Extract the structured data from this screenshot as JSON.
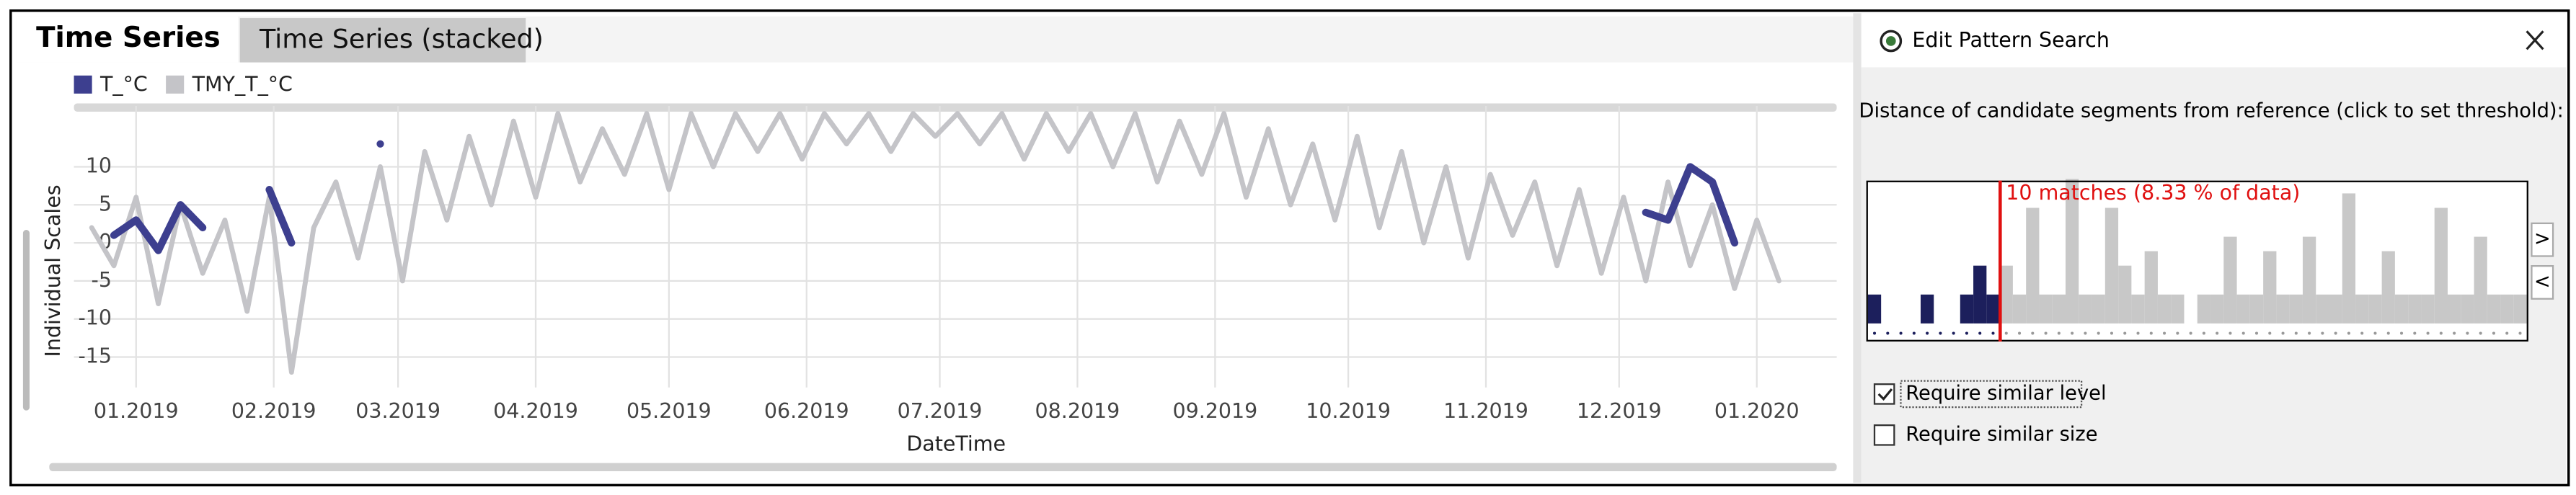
{
  "tabs": [
    "Time Series",
    "Time Series (stacked)"
  ],
  "chart_data": [
    {
      "type": "line",
      "ylabel": "Individual Scales",
      "xlabel": "DateTime",
      "x": [
        -10,
        -5,
        0,
        5,
        10,
        15,
        20,
        25,
        30,
        35,
        40,
        45,
        50,
        55,
        60,
        65,
        70,
        75,
        80,
        85,
        90,
        95,
        100,
        105,
        110,
        115,
        120,
        125,
        130,
        135,
        140,
        145,
        150,
        155,
        160,
        165,
        170,
        175,
        180,
        185,
        190,
        195,
        200,
        205,
        210,
        215,
        220,
        225,
        230,
        235,
        240,
        245,
        250,
        255,
        260,
        265,
        270,
        275,
        280,
        285,
        290,
        295,
        300,
        305,
        310,
        315,
        320,
        325,
        330,
        335,
        340,
        345,
        350,
        355,
        360,
        365,
        370
      ],
      "xlim": [
        -14,
        383
      ],
      "xticks": [
        {
          "value": 0,
          "label": "01.2019"
        },
        {
          "value": 31,
          "label": "02.2019"
        },
        {
          "value": 59,
          "label": "03.2019"
        },
        {
          "value": 90,
          "label": "04.2019"
        },
        {
          "value": 120,
          "label": "05.2019"
        },
        {
          "value": 151,
          "label": "06.2019"
        },
        {
          "value": 181,
          "label": "07.2019"
        },
        {
          "value": 212,
          "label": "08.2019"
        },
        {
          "value": 243,
          "label": "09.2019"
        },
        {
          "value": 273,
          "label": "10.2019"
        },
        {
          "value": 304,
          "label": "11.2019"
        },
        {
          "value": 334,
          "label": "12.2019"
        },
        {
          "value": 365,
          "label": "01.2020"
        }
      ],
      "ylim": [
        -19,
        18
      ],
      "yticks": [
        10,
        5,
        0,
        -5,
        -10,
        -15
      ],
      "grid": true,
      "series": [
        {
          "name": "T_°C",
          "color": "#3d3f8f",
          "values": [
            null,
            1,
            3,
            -1,
            5,
            2,
            null,
            null,
            7,
            0,
            null,
            null,
            null,
            13,
            null,
            null,
            null,
            null,
            null,
            null,
            null,
            null,
            null,
            null,
            null,
            null,
            null,
            null,
            null,
            null,
            null,
            null,
            null,
            null,
            null,
            null,
            null,
            null,
            null,
            null,
            null,
            null,
            null,
            null,
            null,
            null,
            null,
            null,
            null,
            null,
            null,
            null,
            null,
            null,
            null,
            null,
            null,
            null,
            null,
            null,
            null,
            null,
            null,
            null,
            null,
            null,
            null,
            null,
            null,
            null,
            4,
            3,
            10,
            8,
            0,
            null,
            null
          ]
        },
        {
          "name": "TMY_T_°C",
          "color": "#c4c4c8",
          "values": [
            2,
            -3,
            6,
            -8,
            5,
            -4,
            3,
            -9,
            6,
            -17,
            2,
            8,
            -2,
            10,
            -5,
            12,
            3,
            14,
            5,
            16,
            6,
            17,
            8,
            15,
            9,
            17,
            7,
            17,
            10,
            17,
            12,
            17,
            11,
            17,
            13,
            17,
            12,
            17,
            14,
            17,
            13,
            17,
            11,
            17,
            12,
            17,
            10,
            17,
            8,
            16,
            9,
            17,
            6,
            15,
            5,
            13,
            3,
            14,
            2,
            12,
            0,
            10,
            -2,
            9,
            1,
            8,
            -3,
            7,
            -4,
            6,
            -5,
            8,
            -3,
            5,
            -6,
            3,
            -5
          ]
        }
      ]
    },
    {
      "type": "bar",
      "title": "Edit Pattern Search",
      "subtitle": "Distance of candidate segments from reference (click to set threshold):",
      "annotation": "10 matches (8.33 % of data)",
      "values": [
        0.2,
        0,
        0,
        0,
        0.2,
        0,
        0,
        0.2,
        0.4,
        0.2,
        0.4,
        0.2,
        0.8,
        0.2,
        0.2,
        1.0,
        0.2,
        0.2,
        0.8,
        0.4,
        0.2,
        0.5,
        0.2,
        0.2,
        0,
        0.2,
        0.2,
        0.6,
        0.2,
        0.2,
        0.5,
        0.2,
        0.2,
        0.6,
        0.2,
        0.2,
        0.9,
        0.2,
        0.2,
        0.5,
        0.2,
        0.2,
        0.2,
        0.8,
        0.2,
        0.2,
        0.6,
        0.2,
        0.2,
        0.2
      ],
      "colors": [
        "#1c1f5c",
        "#1c1f5c",
        "#1c1f5c",
        "#1c1f5c",
        "#1c1f5c",
        "#1c1f5c",
        "#1c1f5c",
        "#1c1f5c",
        "#1c1f5c",
        "#1c1f5c",
        "#c8c8c8",
        "#c8c8c8",
        "#c8c8c8",
        "#c8c8c8",
        "#c8c8c8",
        "#c8c8c8",
        "#c8c8c8",
        "#c8c8c8",
        "#c8c8c8",
        "#c8c8c8",
        "#c8c8c8",
        "#c8c8c8",
        "#c8c8c8",
        "#c8c8c8",
        "#c8c8c8",
        "#c8c8c8",
        "#c8c8c8",
        "#c8c8c8",
        "#c8c8c8",
        "#c8c8c8",
        "#c8c8c8",
        "#c8c8c8",
        "#c8c8c8",
        "#c8c8c8",
        "#c8c8c8",
        "#c8c8c8",
        "#c8c8c8",
        "#c8c8c8",
        "#c8c8c8",
        "#c8c8c8",
        "#c8c8c8",
        "#c8c8c8",
        "#c8c8c8",
        "#c8c8c8",
        "#c8c8c8",
        "#c8c8c8",
        "#c8c8c8",
        "#c8c8c8",
        "#c8c8c8",
        "#c8c8c8"
      ]
    }
  ],
  "buttons": [
    ">",
    "<"
  ],
  "options": [
    {
      "label": "Require similar level",
      "checked": true
    },
    {
      "label": "Require similar size",
      "checked": false
    }
  ]
}
